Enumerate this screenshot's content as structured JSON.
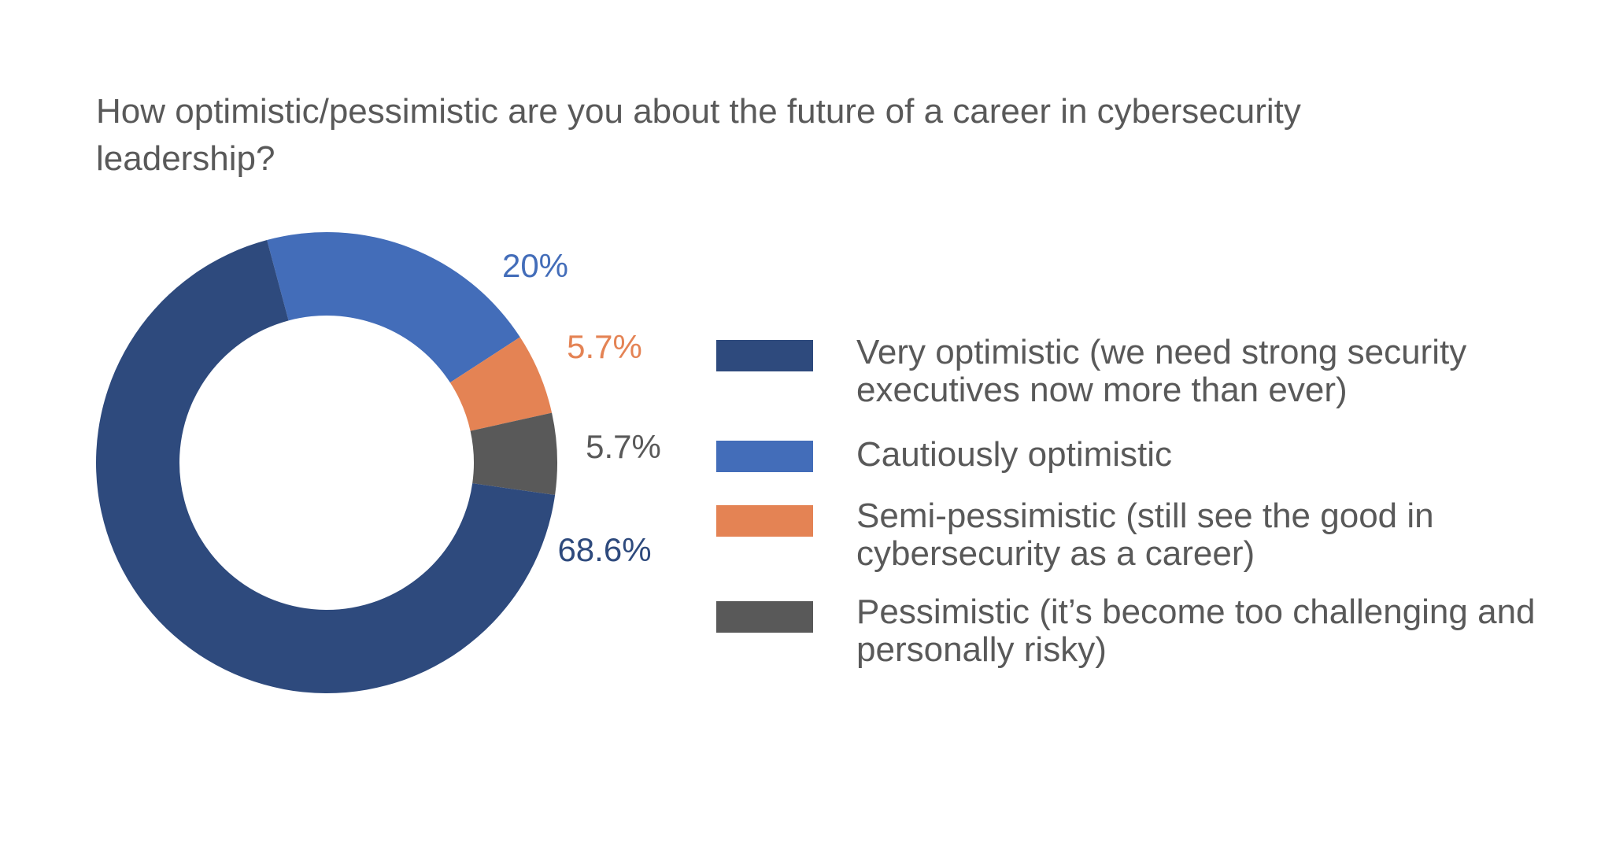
{
  "chart_data": {
    "type": "pie",
    "title": "How optimistic/pessimistic are you about the future of a career in cybersecurity leadership?",
    "slices": [
      {
        "label": "Very optimistic (we need strong security executives now more than ever)",
        "value": 68.6,
        "value_label": "68.6%",
        "color": "#2E4A7D"
      },
      {
        "label": "Cautiously optimistic",
        "value": 20,
        "value_label": "20%",
        "color": "#436DB9"
      },
      {
        "label": "Semi-pessimistic (still see the good in cybersecurity as a career)",
        "value": 5.7,
        "value_label": "5.7%",
        "color": "#E48354"
      },
      {
        "label": "Pessimistic (it’s become too challenging and personally risky)",
        "value": 5.7,
        "value_label": "5.7%",
        "color": "#595959"
      }
    ],
    "legend_position": "right",
    "hole": "donut"
  }
}
